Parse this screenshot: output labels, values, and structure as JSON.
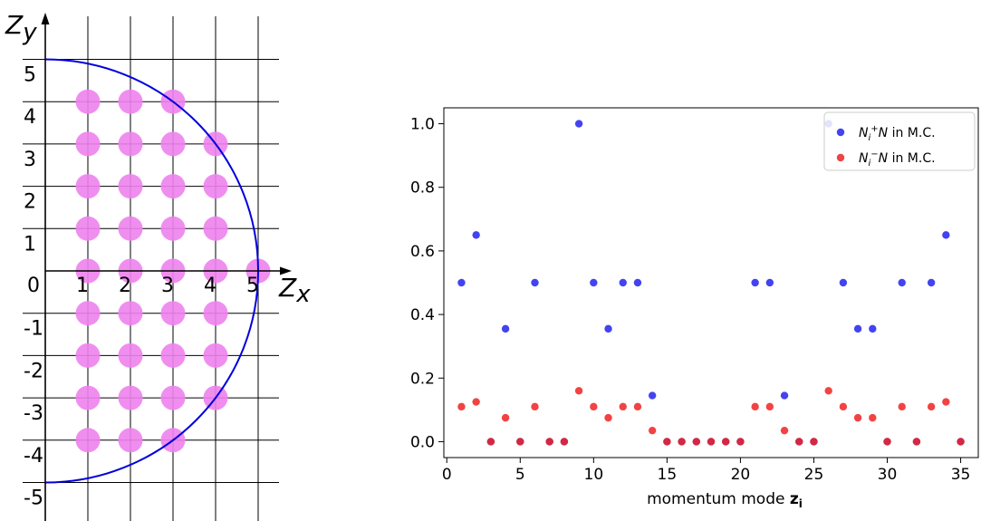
{
  "chart_data": [
    {
      "type": "diagram",
      "axes": {
        "x_label": "Z",
        "x_sub": "x",
        "y_label": "Z",
        "y_sub": "y"
      },
      "x_ticks": [
        "1",
        "2",
        "3",
        "4",
        "5"
      ],
      "origin_label": "0",
      "y_ticks": [
        "5",
        "4",
        "3",
        "2",
        "1",
        "-1",
        "-2",
        "-3",
        "-4",
        "-5"
      ],
      "circle_radius": 5,
      "circle_color": "#0000dd",
      "grid_color": "#000000",
      "point_color": "#ee82ee",
      "points": [
        [
          1,
          4
        ],
        [
          2,
          4
        ],
        [
          3,
          4
        ],
        [
          1,
          3
        ],
        [
          2,
          3
        ],
        [
          3,
          3
        ],
        [
          4,
          3
        ],
        [
          1,
          2
        ],
        [
          2,
          2
        ],
        [
          3,
          2
        ],
        [
          4,
          2
        ],
        [
          1,
          1
        ],
        [
          2,
          1
        ],
        [
          3,
          1
        ],
        [
          4,
          1
        ],
        [
          1,
          0
        ],
        [
          2,
          0
        ],
        [
          3,
          0
        ],
        [
          4,
          0
        ],
        [
          5,
          0
        ],
        [
          1,
          -1
        ],
        [
          2,
          -1
        ],
        [
          3,
          -1
        ],
        [
          4,
          -1
        ],
        [
          1,
          -2
        ],
        [
          2,
          -2
        ],
        [
          3,
          -2
        ],
        [
          4,
          -2
        ],
        [
          1,
          -3
        ],
        [
          2,
          -3
        ],
        [
          3,
          -3
        ],
        [
          4,
          -3
        ],
        [
          1,
          -4
        ],
        [
          2,
          -4
        ],
        [
          3,
          -4
        ]
      ]
    },
    {
      "type": "scatter",
      "title": "",
      "xlabel": "momentum mode ",
      "xlabel_bold": "z",
      "xlabel_sub": "i",
      "ylabel": "",
      "xlim": [
        -0.2,
        36.2
      ],
      "ylim": [
        -0.05,
        1.05
      ],
      "xticks": [
        0,
        5,
        10,
        15,
        20,
        25,
        30,
        35
      ],
      "yticks": [
        "0.0",
        "0.2",
        "0.4",
        "0.6",
        "0.8",
        "1.0"
      ],
      "legend_position": "top-right",
      "series": [
        {
          "name": "N_i^+N in M.C.",
          "legend_base": "N",
          "legend_sub": "i",
          "legend_sup": "+",
          "legend_var": "N",
          "legend_rest": " in M.C.",
          "color": "#2222ee",
          "points": [
            [
              1,
              0.5
            ],
            [
              2,
              0.65
            ],
            [
              3,
              0
            ],
            [
              4,
              0.355
            ],
            [
              5,
              0
            ],
            [
              6,
              0.5
            ],
            [
              7,
              0
            ],
            [
              8,
              0
            ],
            [
              9,
              1.0
            ],
            [
              10,
              0.5
            ],
            [
              11,
              0.355
            ],
            [
              12,
              0.5
            ],
            [
              13,
              0.5
            ],
            [
              14,
              0.145
            ],
            [
              15,
              0
            ],
            [
              16,
              0
            ],
            [
              17,
              0
            ],
            [
              18,
              0
            ],
            [
              19,
              0
            ],
            [
              20,
              0
            ],
            [
              21,
              0.5
            ],
            [
              22,
              0.5
            ],
            [
              23,
              0.145
            ],
            [
              24,
              0
            ],
            [
              25,
              0
            ],
            [
              26,
              1.0
            ],
            [
              27,
              0.5
            ],
            [
              28,
              0.355
            ],
            [
              29,
              0.355
            ],
            [
              30,
              0
            ],
            [
              31,
              0.5
            ],
            [
              32,
              0
            ],
            [
              33,
              0.5
            ],
            [
              34,
              0.65
            ],
            [
              35,
              0
            ]
          ]
        },
        {
          "name": "N_i^-N in M.C.",
          "legend_base": "N",
          "legend_sub": "i",
          "legend_sup": "−",
          "legend_var": "N",
          "legend_rest": " in M.C.",
          "color": "#ee2222",
          "points": [
            [
              1,
              0.11
            ],
            [
              2,
              0.125
            ],
            [
              3,
              0
            ],
            [
              4,
              0.075
            ],
            [
              5,
              0
            ],
            [
              6,
              0.11
            ],
            [
              7,
              0
            ],
            [
              8,
              0
            ],
            [
              9,
              0.16
            ],
            [
              10,
              0.11
            ],
            [
              11,
              0.075
            ],
            [
              12,
              0.11
            ],
            [
              13,
              0.11
            ],
            [
              14,
              0.035
            ],
            [
              15,
              0
            ],
            [
              16,
              0
            ],
            [
              17,
              0
            ],
            [
              18,
              0
            ],
            [
              19,
              0
            ],
            [
              20,
              0
            ],
            [
              21,
              0.11
            ],
            [
              22,
              0.11
            ],
            [
              23,
              0.035
            ],
            [
              24,
              0
            ],
            [
              25,
              0
            ],
            [
              26,
              0.16
            ],
            [
              27,
              0.11
            ],
            [
              28,
              0.075
            ],
            [
              29,
              0.075
            ],
            [
              30,
              0
            ],
            [
              31,
              0.11
            ],
            [
              32,
              0
            ],
            [
              33,
              0.11
            ],
            [
              34,
              0.125
            ],
            [
              35,
              0
            ]
          ]
        }
      ]
    }
  ]
}
